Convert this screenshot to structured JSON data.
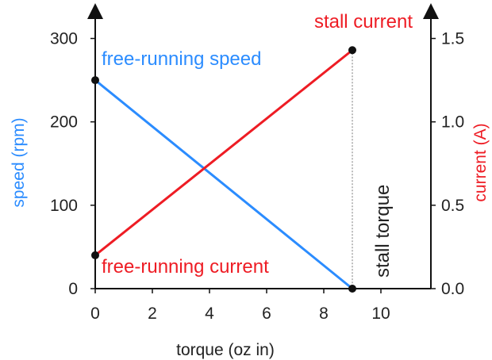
{
  "chart_data": {
    "type": "line",
    "title": "",
    "xlabel": "torque (oz in)",
    "ylabel_left": "speed (rpm)",
    "ylabel_right": "current (A)",
    "xlim": [
      0,
      11
    ],
    "ylim_left": [
      0,
      310
    ],
    "ylim_right": [
      0,
      1.55
    ],
    "x_ticks": [
      "0",
      "2",
      "4",
      "6",
      "8",
      "10"
    ],
    "y_left_ticks": [
      "0",
      "100",
      "200",
      "300"
    ],
    "y_right_ticks": [
      "0.0",
      "0.5",
      "1.0",
      "1.5"
    ],
    "grid": false,
    "series": [
      {
        "name": "free-running speed",
        "axis": "left",
        "x": [
          0,
          9
        ],
        "values": [
          250,
          0
        ],
        "color": "#2b8cff"
      },
      {
        "name": "stall current",
        "axis": "right",
        "x": [
          0,
          9
        ],
        "values": [
          0.2,
          1.43
        ],
        "color": "#ee1c24"
      }
    ],
    "annotations": {
      "free_running_speed": "free-running speed",
      "free_running_current": "free-running current",
      "stall_current": "stall current",
      "stall_torque": "stall torque"
    },
    "stall_torque_x": 9
  },
  "colors": {
    "speed": "#2b8cff",
    "current": "#ee1c24",
    "axis": "#111111"
  }
}
